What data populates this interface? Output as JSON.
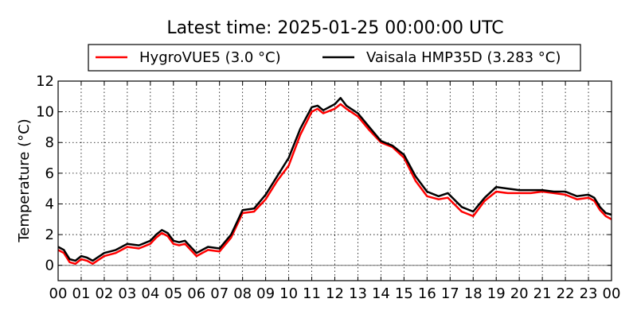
{
  "chart_data": {
    "type": "line",
    "title": "Latest time: 2025-01-25 00:00:00 UTC",
    "xlabel": "",
    "ylabel": "Temperature (°C)",
    "xlim": [
      0,
      24
    ],
    "ylim": [
      -1,
      12
    ],
    "x_tick_labels": [
      "00",
      "01",
      "02",
      "03",
      "04",
      "05",
      "06",
      "07",
      "08",
      "09",
      "10",
      "11",
      "12",
      "13",
      "14",
      "15",
      "16",
      "17",
      "18",
      "19",
      "20",
      "21",
      "22",
      "23",
      "00"
    ],
    "y_ticks": [
      0,
      2,
      4,
      6,
      8,
      10,
      12
    ],
    "grid": true,
    "legend_position": "top",
    "zero_line": 0,
    "series": [
      {
        "name": "HygroVUE5 (3.0 °C)",
        "color": "#ff0000",
        "x": [
          0,
          0.25,
          0.5,
          0.75,
          1,
          1.25,
          1.5,
          2,
          2.5,
          3,
          3.5,
          4,
          4.25,
          4.5,
          4.75,
          5,
          5.25,
          5.5,
          6,
          6.5,
          7,
          7.5,
          8,
          8.5,
          9,
          9.5,
          10,
          10.5,
          11,
          11.25,
          11.5,
          12,
          12.25,
          12.5,
          13,
          13.5,
          14,
          14.5,
          15,
          15.5,
          16,
          16.5,
          16.9,
          17.5,
          18,
          18.5,
          19,
          19.5,
          20,
          20.5,
          21,
          21.5,
          22,
          22.5,
          23,
          23.25,
          23.5,
          23.75,
          24
        ],
        "values": [
          1.0,
          0.8,
          0.2,
          0.1,
          0.4,
          0.3,
          0.1,
          0.6,
          0.8,
          1.2,
          1.1,
          1.4,
          1.8,
          2.1,
          1.9,
          1.4,
          1.3,
          1.4,
          0.6,
          1.0,
          0.9,
          1.8,
          3.4,
          3.5,
          4.3,
          5.5,
          6.5,
          8.5,
          10.0,
          10.2,
          9.9,
          10.2,
          10.5,
          10.2,
          9.7,
          8.8,
          8.0,
          7.7,
          7.0,
          5.5,
          4.5,
          4.3,
          4.4,
          3.5,
          3.2,
          4.2,
          4.8,
          4.7,
          4.7,
          4.7,
          4.8,
          4.7,
          4.6,
          4.3,
          4.4,
          4.2,
          3.6,
          3.2,
          3.0
        ]
      },
      {
        "name": "Vaisala HMP35D (3.283 °C)",
        "color": "#000000",
        "x": [
          0,
          0.25,
          0.5,
          0.75,
          1,
          1.25,
          1.5,
          2,
          2.5,
          3,
          3.5,
          4,
          4.25,
          4.5,
          4.75,
          5,
          5.25,
          5.5,
          6,
          6.5,
          7,
          7.5,
          8,
          8.5,
          9,
          9.5,
          10,
          10.5,
          11,
          11.25,
          11.5,
          12,
          12.25,
          12.5,
          13,
          13.5,
          14,
          14.5,
          15,
          15.5,
          16,
          16.5,
          16.9,
          17.5,
          18,
          18.5,
          19,
          19.5,
          20,
          20.5,
          21,
          21.5,
          22,
          22.5,
          23,
          23.25,
          23.5,
          23.75,
          24
        ],
        "values": [
          1.2,
          1.0,
          0.4,
          0.3,
          0.6,
          0.5,
          0.3,
          0.8,
          1.0,
          1.4,
          1.3,
          1.6,
          2.0,
          2.3,
          2.1,
          1.6,
          1.5,
          1.6,
          0.8,
          1.2,
          1.1,
          2.0,
          3.6,
          3.7,
          4.6,
          5.8,
          7.0,
          8.9,
          10.3,
          10.4,
          10.1,
          10.5,
          10.9,
          10.4,
          9.9,
          9.0,
          8.1,
          7.8,
          7.2,
          5.8,
          4.8,
          4.5,
          4.7,
          3.8,
          3.5,
          4.4,
          5.1,
          5.0,
          4.9,
          4.9,
          4.9,
          4.8,
          4.8,
          4.5,
          4.6,
          4.4,
          3.8,
          3.4,
          3.3
        ]
      }
    ]
  }
}
